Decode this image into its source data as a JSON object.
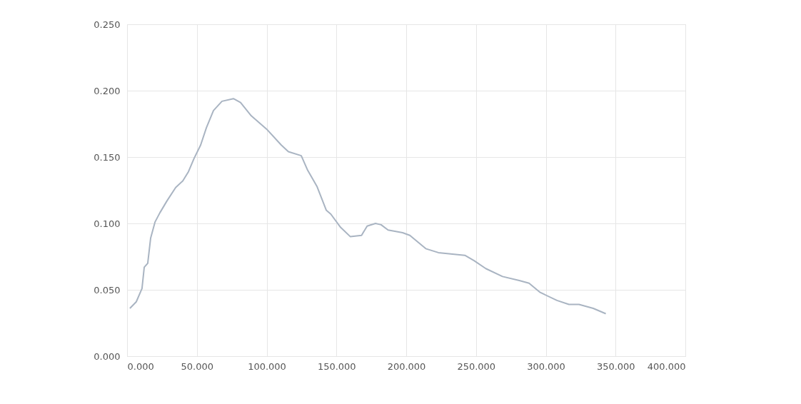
{
  "chart_data": {
    "type": "line",
    "xlim": [
      0,
      400
    ],
    "ylim": [
      0,
      0.25
    ],
    "xticks": [
      {
        "value": 0,
        "label": "0.000"
      },
      {
        "value": 50,
        "label": "50.000"
      },
      {
        "value": 100,
        "label": "100.000"
      },
      {
        "value": 150,
        "label": "150.000"
      },
      {
        "value": 200,
        "label": "200.000"
      },
      {
        "value": 250,
        "label": "250.000"
      },
      {
        "value": 300,
        "label": "300.000"
      },
      {
        "value": 350,
        "label": "350.000"
      },
      {
        "value": 400,
        "label": "400.000"
      }
    ],
    "yticks": [
      {
        "value": 0,
        "label": "0.000"
      },
      {
        "value": 0.05,
        "label": "0.050"
      },
      {
        "value": 0.1,
        "label": "0.100"
      },
      {
        "value": 0.15,
        "label": "0.150"
      },
      {
        "value": 0.2,
        "label": "0.200"
      },
      {
        "value": 0.25,
        "label": "0.250"
      }
    ],
    "grid": true,
    "marker": "none",
    "line_style": "solid",
    "series": [
      {
        "color": "#a9b4c2",
        "x": [
          2,
          6.6,
          10.7,
          12.3,
          14.8,
          16.9,
          20,
          23.5,
          28.6,
          34.8,
          39.9,
          44,
          48,
          52.7,
          56.8,
          61.9,
          68,
          76.2,
          81.3,
          89,
          100,
          110.5,
          115.6,
          124.8,
          129.4,
          136,
          142.7,
          146,
          153,
          160,
          168,
          172,
          178,
          182,
          187,
          197.4,
          202.6,
          214,
          223,
          242,
          248.6,
          257,
          269,
          281,
          288,
          296,
          308,
          316.6,
          323.8,
          334,
          343
        ],
        "values": [
          0.036,
          0.041,
          0.051,
          0.067,
          0.07,
          0.089,
          0.101,
          0.108,
          0.117,
          0.127,
          0.132,
          0.139,
          0.149,
          0.159,
          0.172,
          0.185,
          0.192,
          0.194,
          0.191,
          0.181,
          0.171,
          0.159,
          0.154,
          0.151,
          0.14,
          0.128,
          0.11,
          0.107,
          0.097,
          0.09,
          0.091,
          0.098,
          0.1,
          0.099,
          0.095,
          0.093,
          0.091,
          0.081,
          0.078,
          0.076,
          0.072,
          0.066,
          0.06,
          0.057,
          0.055,
          0.048,
          0.042,
          0.039,
          0.039,
          0.036,
          0.032
        ]
      }
    ]
  }
}
